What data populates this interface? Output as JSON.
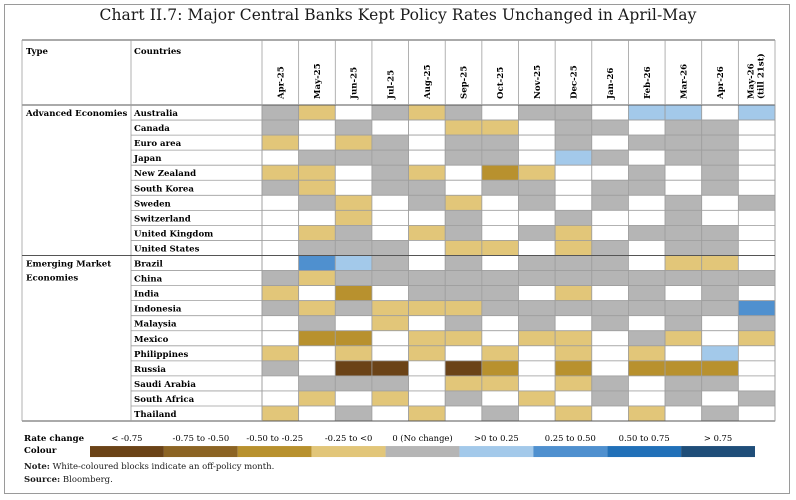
{
  "title": "Chart II.7: Major Central Banks Kept Policy Rates Unchanged in April-May",
  "headers": {
    "type": "Type",
    "countries": "Countries"
  },
  "legend": {
    "rate_change_label": "Rate change",
    "colour_label": "Colour",
    "items": [
      {
        "label": "< -0.75",
        "color": "#6b4317"
      },
      {
        "label": "-0.75 to -0.50",
        "color": "#8c6424"
      },
      {
        "label": "-0.50 to -0.25",
        "color": "#b8912e"
      },
      {
        "label": "-0.25 to <0",
        "color": "#e2c679"
      },
      {
        "label": "0 (No change)",
        "color": "#b5b5b5"
      },
      {
        "label": ">0 to 0.25",
        "color": "#a3c9ea"
      },
      {
        "label": "0.25 to 0.50",
        "color": "#4f90cf"
      },
      {
        "label": "0.50 to 0.75",
        "color": "#2170b8"
      },
      {
        "label": "> 0.75",
        "color": "#1f4e79"
      }
    ]
  },
  "note_label": "Note:",
  "note_text": "White-coloured blocks indicate an off-policy month.",
  "source_label": "Source:",
  "source_text": "Bloomberg.",
  "chart_data": {
    "type": "heatmap",
    "title": "Chart II.7: Major Central Banks Kept Policy Rates Unchanged in April-May",
    "categories_legend": [
      "< -0.75",
      "-0.75 to -0.50",
      "-0.50 to -0.25",
      "-0.25 to <0",
      "0 (No change)",
      ">0 to 0.25",
      "0.25 to 0.50",
      "0.50 to 0.75",
      "> 0.75"
    ],
    "months": [
      "Apr-25",
      "May-25",
      "Jun-25",
      "Jul-25",
      "Aug-25",
      "Sep-25",
      "Oct-25",
      "Nov-25",
      "Dec-25",
      "Jan-26",
      "Feb-26",
      "Mar-26",
      "Apr-26",
      "May-26 (till 21st)"
    ],
    "code_key": {
      "W": "off-policy month",
      "L1": "< -0.75",
      "L2": "-0.75 to -0.50",
      "L3": "-0.50 to -0.25",
      "L4": "-0.25 to <0",
      "N": "0 (No change)",
      "H1": ">0 to 0.25",
      "H2": "0.25 to 0.50",
      "H3": "0.50 to 0.75",
      "H4": "> 0.75"
    },
    "groups": [
      {
        "type": "Advanced Economies",
        "rows": [
          {
            "country": "Australia",
            "cells": [
              "N",
              "L4",
              "W",
              "N",
              "L4",
              "N",
              "W",
              "N",
              "N",
              "W",
              "H1",
              "H1",
              "W",
              "H1"
            ]
          },
          {
            "country": "Canada",
            "cells": [
              "N",
              "W",
              "N",
              "W",
              "W",
              "L4",
              "L4",
              "W",
              "N",
              "N",
              "W",
              "N",
              "N",
              "W"
            ]
          },
          {
            "country": "Euro area",
            "cells": [
              "L4",
              "W",
              "L4",
              "N",
              "W",
              "N",
              "N",
              "W",
              "N",
              "W",
              "N",
              "N",
              "N",
              "W"
            ]
          },
          {
            "country": "Japan",
            "cells": [
              "W",
              "N",
              "N",
              "N",
              "W",
              "N",
              "N",
              "W",
              "H1",
              "N",
              "W",
              "N",
              "N",
              "W"
            ]
          },
          {
            "country": "New Zealand",
            "cells": [
              "L4",
              "L4",
              "W",
              "N",
              "L4",
              "W",
              "L3",
              "L4",
              "W",
              "W",
              "N",
              "W",
              "N",
              "W"
            ]
          },
          {
            "country": "South Korea",
            "cells": [
              "N",
              "L4",
              "W",
              "N",
              "N",
              "W",
              "N",
              "N",
              "W",
              "N",
              "N",
              "W",
              "N",
              "W"
            ]
          },
          {
            "country": "Sweden",
            "cells": [
              "W",
              "N",
              "L4",
              "W",
              "N",
              "L4",
              "W",
              "N",
              "W",
              "N",
              "W",
              "N",
              "W",
              "N"
            ]
          },
          {
            "country": "Switzerland",
            "cells": [
              "W",
              "W",
              "L4",
              "W",
              "W",
              "N",
              "W",
              "W",
              "N",
              "W",
              "W",
              "N",
              "W",
              "W"
            ]
          },
          {
            "country": "United Kingdom",
            "cells": [
              "W",
              "L4",
              "N",
              "W",
              "L4",
              "N",
              "W",
              "N",
              "L4",
              "W",
              "N",
              "N",
              "N",
              "W"
            ]
          },
          {
            "country": "United States",
            "cells": [
              "W",
              "N",
              "N",
              "N",
              "W",
              "L4",
              "L4",
              "W",
              "L4",
              "N",
              "W",
              "N",
              "N",
              "W"
            ]
          }
        ]
      },
      {
        "type": "Emerging Market Economies",
        "rows": [
          {
            "country": "Brazil",
            "cells": [
              "W",
              "H2",
              "H1",
              "N",
              "W",
              "N",
              "W",
              "N",
              "N",
              "N",
              "W",
              "L4",
              "L4",
              "W"
            ]
          },
          {
            "country": "China",
            "cells": [
              "N",
              "L4",
              "N",
              "N",
              "N",
              "N",
              "N",
              "N",
              "N",
              "N",
              "N",
              "N",
              "N",
              "N"
            ]
          },
          {
            "country": "India",
            "cells": [
              "L4",
              "W",
              "L3",
              "W",
              "N",
              "N",
              "N",
              "W",
              "L4",
              "W",
              "N",
              "W",
              "N",
              "W"
            ]
          },
          {
            "country": "Indonesia",
            "cells": [
              "N",
              "L4",
              "N",
              "L4",
              "L4",
              "L4",
              "N",
              "N",
              "N",
              "N",
              "N",
              "N",
              "N",
              "H2"
            ]
          },
          {
            "country": "Malaysia",
            "cells": [
              "W",
              "N",
              "W",
              "L4",
              "W",
              "N",
              "W",
              "N",
              "W",
              "N",
              "W",
              "N",
              "W",
              "N"
            ]
          },
          {
            "country": "Mexico",
            "cells": [
              "W",
              "L3",
              "L3",
              "W",
              "L4",
              "L4",
              "W",
              "L4",
              "L4",
              "W",
              "N",
              "L4",
              "W",
              "L4"
            ]
          },
          {
            "country": "Philippines",
            "cells": [
              "L4",
              "W",
              "L4",
              "W",
              "L4",
              "W",
              "L4",
              "W",
              "L4",
              "W",
              "L4",
              "W",
              "H1",
              "W"
            ]
          },
          {
            "country": "Russia",
            "cells": [
              "N",
              "W",
              "L1",
              "L1",
              "W",
              "L1",
              "L3",
              "W",
              "L3",
              "W",
              "L3",
              "L3",
              "L3",
              "W"
            ]
          },
          {
            "country": "Saudi Arabia",
            "cells": [
              "W",
              "N",
              "N",
              "N",
              "W",
              "L4",
              "L4",
              "W",
              "L4",
              "N",
              "W",
              "N",
              "N",
              "W"
            ]
          },
          {
            "country": "South Africa",
            "cells": [
              "W",
              "L4",
              "W",
              "L4",
              "W",
              "N",
              "W",
              "L4",
              "W",
              "N",
              "W",
              "N",
              "W",
              "N"
            ]
          },
          {
            "country": "Thailand",
            "cells": [
              "L4",
              "W",
              "N",
              "W",
              "L4",
              "W",
              "N",
              "W",
              "L4",
              "W",
              "L4",
              "W",
              "N",
              "W"
            ]
          }
        ]
      }
    ]
  }
}
